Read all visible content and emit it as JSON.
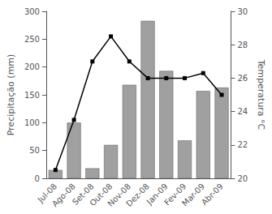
{
  "chart_data": {
    "type": "bar",
    "categories": [
      "Jul-08",
      "Ago-08",
      "Set-08",
      "Out-08",
      "Nov-08",
      "Dez-08",
      "Jan-09",
      "Fev-09",
      "Mar-09",
      "Abr-09"
    ],
    "series": [
      {
        "type": "bar",
        "color": "#a0a0a0",
        "values": [
          15,
          100,
          18,
          60,
          168,
          283,
          193,
          68,
          157,
          163
        ]
      },
      {
        "type": "line",
        "axis": "y2",
        "color": "#000000",
        "marker": "square",
        "values": [
          20.5,
          23.5,
          27.0,
          28.5,
          27.0,
          26.0,
          26.0,
          26.0,
          26.3,
          25.0
        ]
      }
    ],
    "ylabel": "Precipitação (mm)",
    "y2label": "Temperatura °C",
    "ylim": [
      0,
      300
    ],
    "yticks": [
      0,
      50,
      100,
      150,
      200,
      250,
      300
    ],
    "y2lim": [
      20,
      30
    ],
    "y2ticks": [
      20,
      22,
      24,
      26,
      28,
      30
    ],
    "grid": false
  }
}
